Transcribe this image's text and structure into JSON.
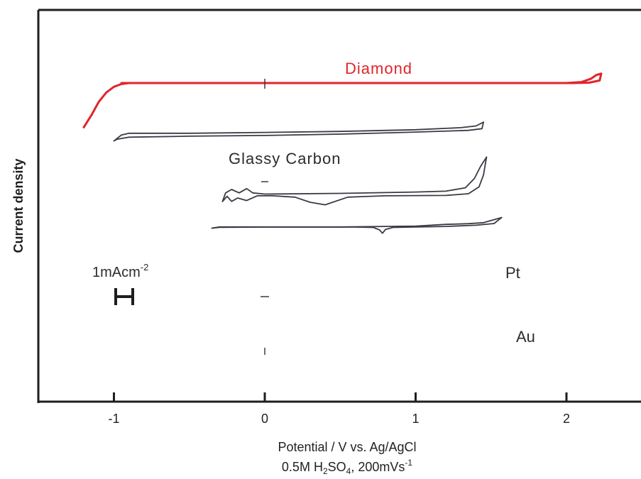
{
  "chart_data": {
    "type": "line",
    "ylabel": "Current density",
    "xlabel": "Potential / V vs. Ag/AgCl",
    "xlabel_line2": {
      "main": "0.5M H",
      "sub1": "2",
      "mid": "SO",
      "sub2": "4",
      "tail": ", 200mVs",
      "sup": "-1"
    },
    "xticks": [
      -1,
      0,
      1,
      2
    ],
    "xtick_labels": [
      "-1",
      "0",
      "1",
      "2"
    ],
    "xlim": [
      -1.45,
      2.45
    ],
    "scale_bar": {
      "text": "1mAcm",
      "sup": "-2",
      "value_mA_cm2": 1
    },
    "colors": {
      "axis": "#1e1e1e",
      "diamond": "#e0252a",
      "curves": "#3a3a44"
    },
    "series": [
      {
        "name": "Diamond",
        "color": "#e0252a",
        "forward": [
          [
            -1.2,
            -2.6
          ],
          [
            -1.15,
            -1.9
          ],
          [
            -1.1,
            -1.1
          ],
          [
            -1.05,
            -0.55
          ],
          [
            -1.0,
            -0.22
          ],
          [
            -0.95,
            -0.06
          ],
          [
            -0.9,
            0
          ],
          [
            0,
            0
          ],
          [
            1,
            0
          ],
          [
            1.5,
            0
          ],
          [
            2.0,
            0
          ],
          [
            2.1,
            0.06
          ],
          [
            2.16,
            0.24
          ],
          [
            2.2,
            0.48
          ],
          [
            2.23,
            0.55
          ]
        ],
        "reverse": [
          [
            2.23,
            0.55
          ],
          [
            2.22,
            0.15
          ],
          [
            2.15,
            0.02
          ],
          [
            2.05,
            0
          ],
          [
            1.5,
            0
          ],
          [
            0.5,
            0
          ],
          [
            0,
            0
          ],
          [
            -0.9,
            0
          ],
          [
            -0.95,
            0
          ]
        ]
      },
      {
        "name": "Glassy Carbon",
        "color": "#3a3a44",
        "forward": [
          [
            -1.0,
            -3.4
          ],
          [
            -0.95,
            -3.05
          ],
          [
            -0.9,
            -2.95
          ],
          [
            -0.5,
            -2.95
          ],
          [
            0,
            -2.9
          ],
          [
            0.5,
            -2.84
          ],
          [
            1.0,
            -2.74
          ],
          [
            1.3,
            -2.62
          ],
          [
            1.4,
            -2.52
          ],
          [
            1.45,
            -2.3
          ]
        ],
        "reverse": [
          [
            1.45,
            -2.3
          ],
          [
            1.44,
            -2.68
          ],
          [
            1.35,
            -2.78
          ],
          [
            1.0,
            -2.88
          ],
          [
            0.5,
            -3.0
          ],
          [
            0,
            -3.08
          ],
          [
            -0.5,
            -3.12
          ],
          [
            -0.9,
            -3.18
          ],
          [
            -0.98,
            -3.3
          ],
          [
            -1.0,
            -3.4
          ]
        ]
      },
      {
        "name": "Pt",
        "color": "#3a3a44",
        "forward": [
          [
            -0.28,
            -6.95
          ],
          [
            -0.26,
            -6.45
          ],
          [
            -0.22,
            -6.25
          ],
          [
            -0.17,
            -6.45
          ],
          [
            -0.12,
            -6.2
          ],
          [
            -0.08,
            -6.45
          ],
          [
            0,
            -6.52
          ],
          [
            0.5,
            -6.48
          ],
          [
            1.0,
            -6.4
          ],
          [
            1.2,
            -6.35
          ],
          [
            1.33,
            -6.15
          ],
          [
            1.39,
            -5.6
          ],
          [
            1.43,
            -4.9
          ],
          [
            1.47,
            -4.35
          ]
        ],
        "reverse": [
          [
            1.47,
            -4.35
          ],
          [
            1.45,
            -5.4
          ],
          [
            1.42,
            -6.1
          ],
          [
            1.35,
            -6.5
          ],
          [
            1.2,
            -6.6
          ],
          [
            0.8,
            -6.62
          ],
          [
            0.55,
            -6.7
          ],
          [
            0.4,
            -7.15
          ],
          [
            0.3,
            -7.0
          ],
          [
            0.2,
            -6.7
          ],
          [
            0.05,
            -6.62
          ],
          [
            -0.05,
            -6.62
          ],
          [
            -0.12,
            -6.9
          ],
          [
            -0.18,
            -6.75
          ],
          [
            -0.22,
            -6.95
          ],
          [
            -0.25,
            -6.65
          ],
          [
            -0.28,
            -6.95
          ]
        ]
      },
      {
        "name": "Au",
        "color": "#3a3a44",
        "forward": [
          [
            -0.35,
            -8.52
          ],
          [
            -0.3,
            -8.45
          ],
          [
            0,
            -8.45
          ],
          [
            0.5,
            -8.45
          ],
          [
            1.0,
            -8.4
          ],
          [
            1.2,
            -8.3
          ],
          [
            1.35,
            -8.26
          ],
          [
            1.45,
            -8.2
          ],
          [
            1.55,
            -7.95
          ],
          [
            1.57,
            -7.9
          ]
        ],
        "reverse": [
          [
            1.57,
            -7.9
          ],
          [
            1.52,
            -8.25
          ],
          [
            1.4,
            -8.35
          ],
          [
            1.2,
            -8.42
          ],
          [
            1.0,
            -8.45
          ],
          [
            0.85,
            -8.48
          ],
          [
            0.8,
            -8.6
          ],
          [
            0.78,
            -8.82
          ],
          [
            0.76,
            -8.62
          ],
          [
            0.72,
            -8.48
          ],
          [
            0.6,
            -8.46
          ],
          [
            0,
            -8.46
          ],
          [
            -0.3,
            -8.47
          ],
          [
            -0.35,
            -8.52
          ]
        ]
      }
    ]
  }
}
